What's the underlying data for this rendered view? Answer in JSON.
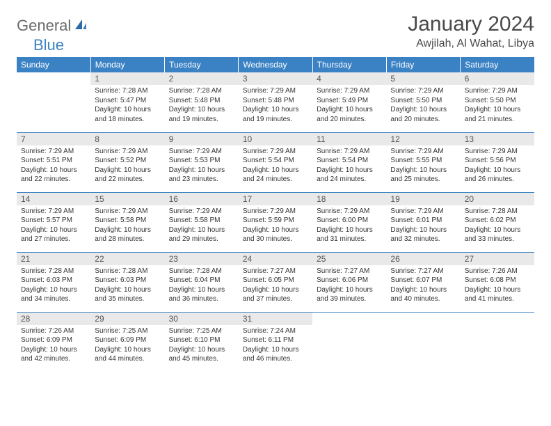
{
  "logo": {
    "gray": "General",
    "blue": "Blue"
  },
  "title": "January 2024",
  "location": "Awjilah, Al Wahat, Libya",
  "colors": {
    "header_bg": "#3b82c4",
    "header_text": "#ffffff",
    "daynum_bg": "#e9e9e9",
    "border": "#3b82c4",
    "title_color": "#4a4a4a",
    "logo_gray": "#6a6a6a",
    "logo_blue": "#3b82c4"
  },
  "weekdays": [
    "Sunday",
    "Monday",
    "Tuesday",
    "Wednesday",
    "Thursday",
    "Friday",
    "Saturday"
  ],
  "grid": [
    [
      {
        "n": "",
        "sr": "",
        "ss": "",
        "dl": ""
      },
      {
        "n": "1",
        "sr": "Sunrise: 7:28 AM",
        "ss": "Sunset: 5:47 PM",
        "dl": "Daylight: 10 hours and 18 minutes."
      },
      {
        "n": "2",
        "sr": "Sunrise: 7:28 AM",
        "ss": "Sunset: 5:48 PM",
        "dl": "Daylight: 10 hours and 19 minutes."
      },
      {
        "n": "3",
        "sr": "Sunrise: 7:29 AM",
        "ss": "Sunset: 5:48 PM",
        "dl": "Daylight: 10 hours and 19 minutes."
      },
      {
        "n": "4",
        "sr": "Sunrise: 7:29 AM",
        "ss": "Sunset: 5:49 PM",
        "dl": "Daylight: 10 hours and 20 minutes."
      },
      {
        "n": "5",
        "sr": "Sunrise: 7:29 AM",
        "ss": "Sunset: 5:50 PM",
        "dl": "Daylight: 10 hours and 20 minutes."
      },
      {
        "n": "6",
        "sr": "Sunrise: 7:29 AM",
        "ss": "Sunset: 5:50 PM",
        "dl": "Daylight: 10 hours and 21 minutes."
      }
    ],
    [
      {
        "n": "7",
        "sr": "Sunrise: 7:29 AM",
        "ss": "Sunset: 5:51 PM",
        "dl": "Daylight: 10 hours and 22 minutes."
      },
      {
        "n": "8",
        "sr": "Sunrise: 7:29 AM",
        "ss": "Sunset: 5:52 PM",
        "dl": "Daylight: 10 hours and 22 minutes."
      },
      {
        "n": "9",
        "sr": "Sunrise: 7:29 AM",
        "ss": "Sunset: 5:53 PM",
        "dl": "Daylight: 10 hours and 23 minutes."
      },
      {
        "n": "10",
        "sr": "Sunrise: 7:29 AM",
        "ss": "Sunset: 5:54 PM",
        "dl": "Daylight: 10 hours and 24 minutes."
      },
      {
        "n": "11",
        "sr": "Sunrise: 7:29 AM",
        "ss": "Sunset: 5:54 PM",
        "dl": "Daylight: 10 hours and 24 minutes."
      },
      {
        "n": "12",
        "sr": "Sunrise: 7:29 AM",
        "ss": "Sunset: 5:55 PM",
        "dl": "Daylight: 10 hours and 25 minutes."
      },
      {
        "n": "13",
        "sr": "Sunrise: 7:29 AM",
        "ss": "Sunset: 5:56 PM",
        "dl": "Daylight: 10 hours and 26 minutes."
      }
    ],
    [
      {
        "n": "14",
        "sr": "Sunrise: 7:29 AM",
        "ss": "Sunset: 5:57 PM",
        "dl": "Daylight: 10 hours and 27 minutes."
      },
      {
        "n": "15",
        "sr": "Sunrise: 7:29 AM",
        "ss": "Sunset: 5:58 PM",
        "dl": "Daylight: 10 hours and 28 minutes."
      },
      {
        "n": "16",
        "sr": "Sunrise: 7:29 AM",
        "ss": "Sunset: 5:58 PM",
        "dl": "Daylight: 10 hours and 29 minutes."
      },
      {
        "n": "17",
        "sr": "Sunrise: 7:29 AM",
        "ss": "Sunset: 5:59 PM",
        "dl": "Daylight: 10 hours and 30 minutes."
      },
      {
        "n": "18",
        "sr": "Sunrise: 7:29 AM",
        "ss": "Sunset: 6:00 PM",
        "dl": "Daylight: 10 hours and 31 minutes."
      },
      {
        "n": "19",
        "sr": "Sunrise: 7:29 AM",
        "ss": "Sunset: 6:01 PM",
        "dl": "Daylight: 10 hours and 32 minutes."
      },
      {
        "n": "20",
        "sr": "Sunrise: 7:28 AM",
        "ss": "Sunset: 6:02 PM",
        "dl": "Daylight: 10 hours and 33 minutes."
      }
    ],
    [
      {
        "n": "21",
        "sr": "Sunrise: 7:28 AM",
        "ss": "Sunset: 6:03 PM",
        "dl": "Daylight: 10 hours and 34 minutes."
      },
      {
        "n": "22",
        "sr": "Sunrise: 7:28 AM",
        "ss": "Sunset: 6:03 PM",
        "dl": "Daylight: 10 hours and 35 minutes."
      },
      {
        "n": "23",
        "sr": "Sunrise: 7:28 AM",
        "ss": "Sunset: 6:04 PM",
        "dl": "Daylight: 10 hours and 36 minutes."
      },
      {
        "n": "24",
        "sr": "Sunrise: 7:27 AM",
        "ss": "Sunset: 6:05 PM",
        "dl": "Daylight: 10 hours and 37 minutes."
      },
      {
        "n": "25",
        "sr": "Sunrise: 7:27 AM",
        "ss": "Sunset: 6:06 PM",
        "dl": "Daylight: 10 hours and 39 minutes."
      },
      {
        "n": "26",
        "sr": "Sunrise: 7:27 AM",
        "ss": "Sunset: 6:07 PM",
        "dl": "Daylight: 10 hours and 40 minutes."
      },
      {
        "n": "27",
        "sr": "Sunrise: 7:26 AM",
        "ss": "Sunset: 6:08 PM",
        "dl": "Daylight: 10 hours and 41 minutes."
      }
    ],
    [
      {
        "n": "28",
        "sr": "Sunrise: 7:26 AM",
        "ss": "Sunset: 6:09 PM",
        "dl": "Daylight: 10 hours and 42 minutes."
      },
      {
        "n": "29",
        "sr": "Sunrise: 7:25 AM",
        "ss": "Sunset: 6:09 PM",
        "dl": "Daylight: 10 hours and 44 minutes."
      },
      {
        "n": "30",
        "sr": "Sunrise: 7:25 AM",
        "ss": "Sunset: 6:10 PM",
        "dl": "Daylight: 10 hours and 45 minutes."
      },
      {
        "n": "31",
        "sr": "Sunrise: 7:24 AM",
        "ss": "Sunset: 6:11 PM",
        "dl": "Daylight: 10 hours and 46 minutes."
      },
      {
        "n": "",
        "sr": "",
        "ss": "",
        "dl": ""
      },
      {
        "n": "",
        "sr": "",
        "ss": "",
        "dl": ""
      },
      {
        "n": "",
        "sr": "",
        "ss": "",
        "dl": ""
      }
    ]
  ]
}
